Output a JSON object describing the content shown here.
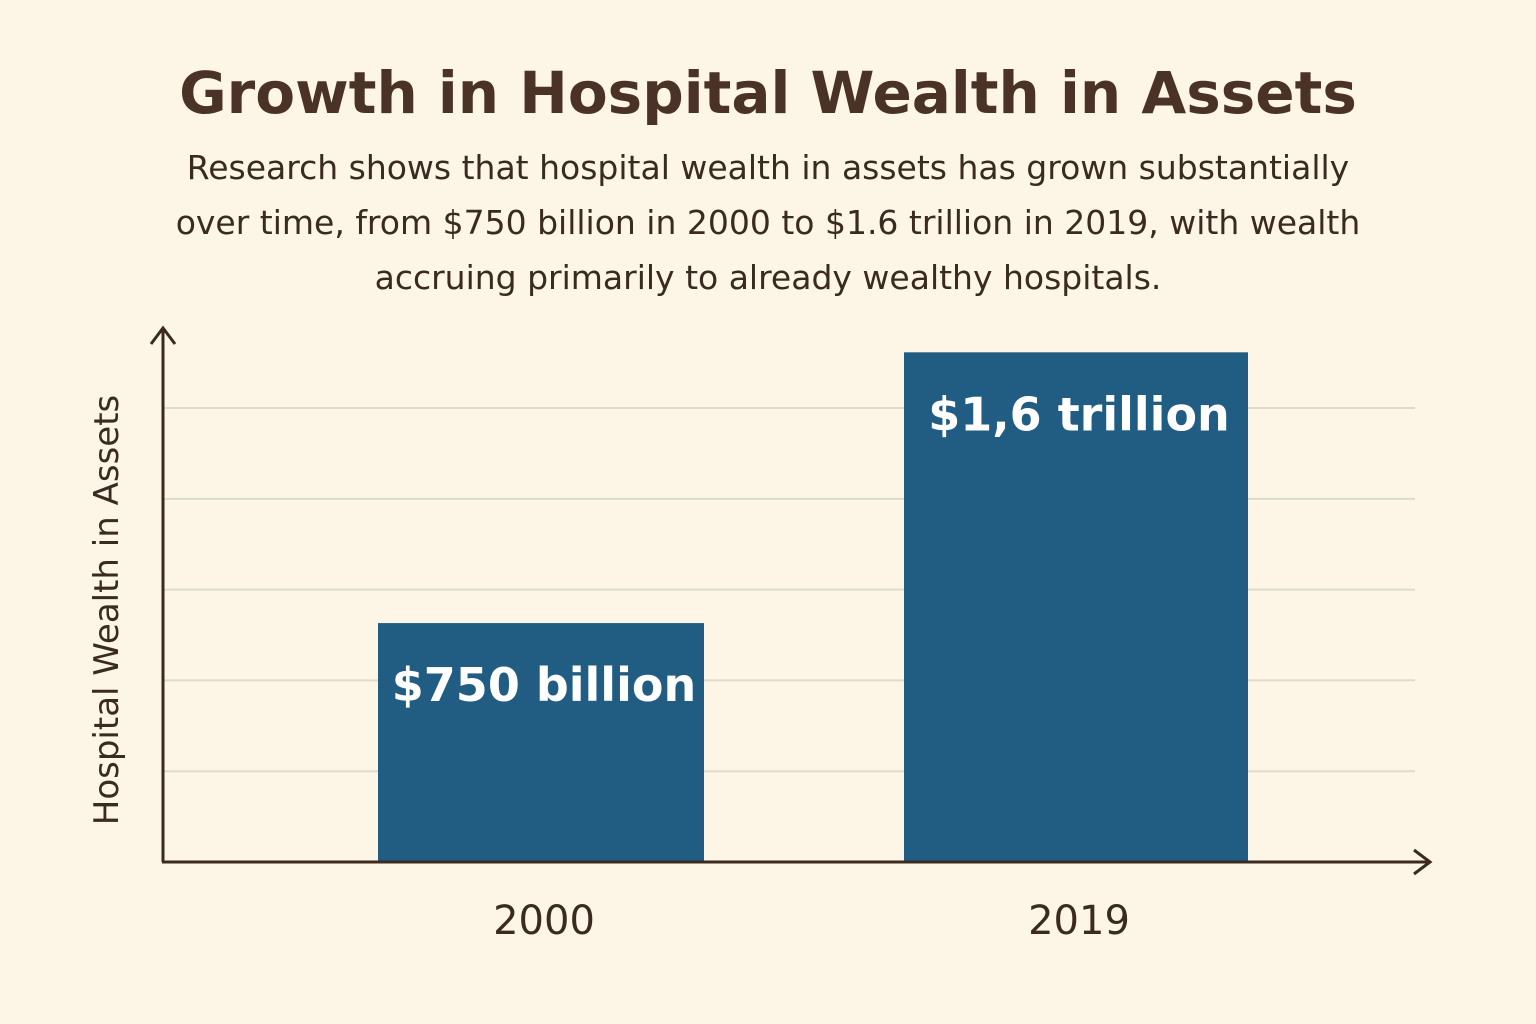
{
  "title": "Growth in Hospital Wealth in Assets",
  "subtitle_lines": [
    "Research shows that hospital wealth in assets has grown substantially",
    "over time, from $750 billion in 2000 to $1.6 trillion in 2019, with wealth",
    "accruing primarily to already wealthy hospitals."
  ],
  "colors": {
    "background": "#fdf5e6",
    "bar": "#215c82",
    "axis": "#3a2a20",
    "grid": "#dcdccc",
    "text": "#4a3326"
  },
  "chart_data": {
    "type": "bar",
    "title": "Growth in Hospital Wealth in Assets",
    "xlabel": "",
    "ylabel": "Hospital Wealth in Assets",
    "categories": [
      "2000",
      "2019"
    ],
    "values": [
      750,
      1600
    ],
    "units": "billion USD",
    "data_labels": [
      "$750 billion",
      "$1,6 trillion"
    ],
    "ylim": [
      0,
      1670
    ],
    "grid": true,
    "gridlines": [
      285,
      570,
      855,
      1140,
      1425
    ]
  }
}
